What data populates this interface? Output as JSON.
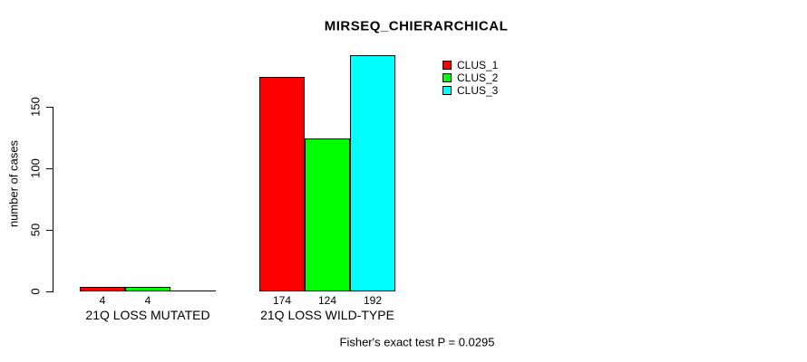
{
  "chart_data": {
    "type": "bar",
    "title": "MIRSEQ_CHIERARCHICAL",
    "ylabel": "number of cases",
    "xlabel": "",
    "categories": [
      "21Q LOSS MUTATED",
      "21Q LOSS WILD-TYPE"
    ],
    "series": [
      {
        "name": "CLUS_1",
        "color": "#FF0000",
        "values": [
          4,
          174
        ]
      },
      {
        "name": "CLUS_2",
        "color": "#00FF00",
        "values": [
          4,
          124
        ]
      },
      {
        "name": "CLUS_3",
        "color": "#00FFFF",
        "values": [
          0,
          192
        ]
      }
    ],
    "bar_value_labels": [
      [
        4,
        4,
        null
      ],
      [
        174,
        124,
        192
      ]
    ],
    "yticks": [
      0,
      50,
      100,
      150
    ],
    "ylim": [
      0,
      200
    ],
    "grid": false,
    "legend_position": "top-right",
    "legend_entries": [
      "CLUS_1",
      "CLUS_2",
      "CLUS_3"
    ],
    "annotation": "Fisher's exact test P = 0.0295",
    "axis_color": "#000000",
    "background_color": "#FFFFFF"
  }
}
